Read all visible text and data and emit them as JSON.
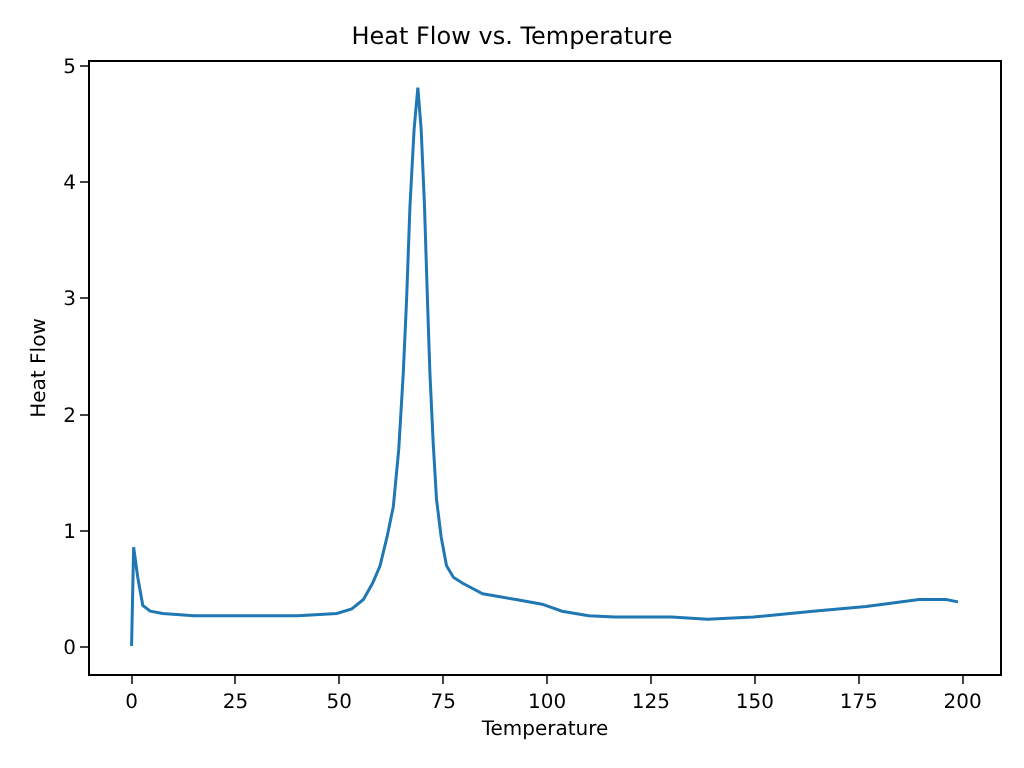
{
  "chart_data": {
    "type": "line",
    "title": "Heat Flow vs. Temperature",
    "xlabel": "Temperature",
    "ylabel": "Heat Flow",
    "xlim": [
      -10,
      209
    ],
    "xticks": [
      0,
      25,
      50,
      75,
      100,
      125,
      150,
      175,
      200
    ],
    "ylim": [
      -0.23,
      5.03
    ],
    "yticks": [
      0,
      1,
      2,
      3,
      4,
      5
    ],
    "series": [
      {
        "color": "#1f77b4",
        "x": [
          0,
          0.5,
          1.5,
          2.7,
          4.5,
          7.5,
          15,
          25,
          40,
          49.4,
          53,
          55.8,
          58,
          59.8,
          61.5,
          63,
          64.3,
          65.4,
          66.2,
          67,
          68,
          68.9,
          69.7,
          70.5,
          71.2,
          71.8,
          72.6,
          73.4,
          74.5,
          75.8,
          77.5,
          79.7,
          84.5,
          92.5,
          98.8,
          103.6,
          106.8,
          110,
          116.3,
          125.9,
          130,
          138.6,
          149.7,
          164,
          176.8,
          189.5,
          196,
          198.9
        ],
        "values": [
          0.01,
          0.86,
          0.6,
          0.36,
          0.31,
          0.29,
          0.27,
          0.27,
          0.27,
          0.29,
          0.33,
          0.41,
          0.55,
          0.7,
          0.95,
          1.21,
          1.7,
          2.36,
          3.0,
          3.79,
          4.45,
          4.81,
          4.45,
          3.79,
          3.0,
          2.36,
          1.75,
          1.27,
          0.95,
          0.7,
          0.6,
          0.55,
          0.46,
          0.41,
          0.37,
          0.31,
          0.29,
          0.27,
          0.26,
          0.26,
          0.26,
          0.24,
          0.26,
          0.31,
          0.35,
          0.41,
          0.41,
          0.39
        ]
      }
    ]
  }
}
